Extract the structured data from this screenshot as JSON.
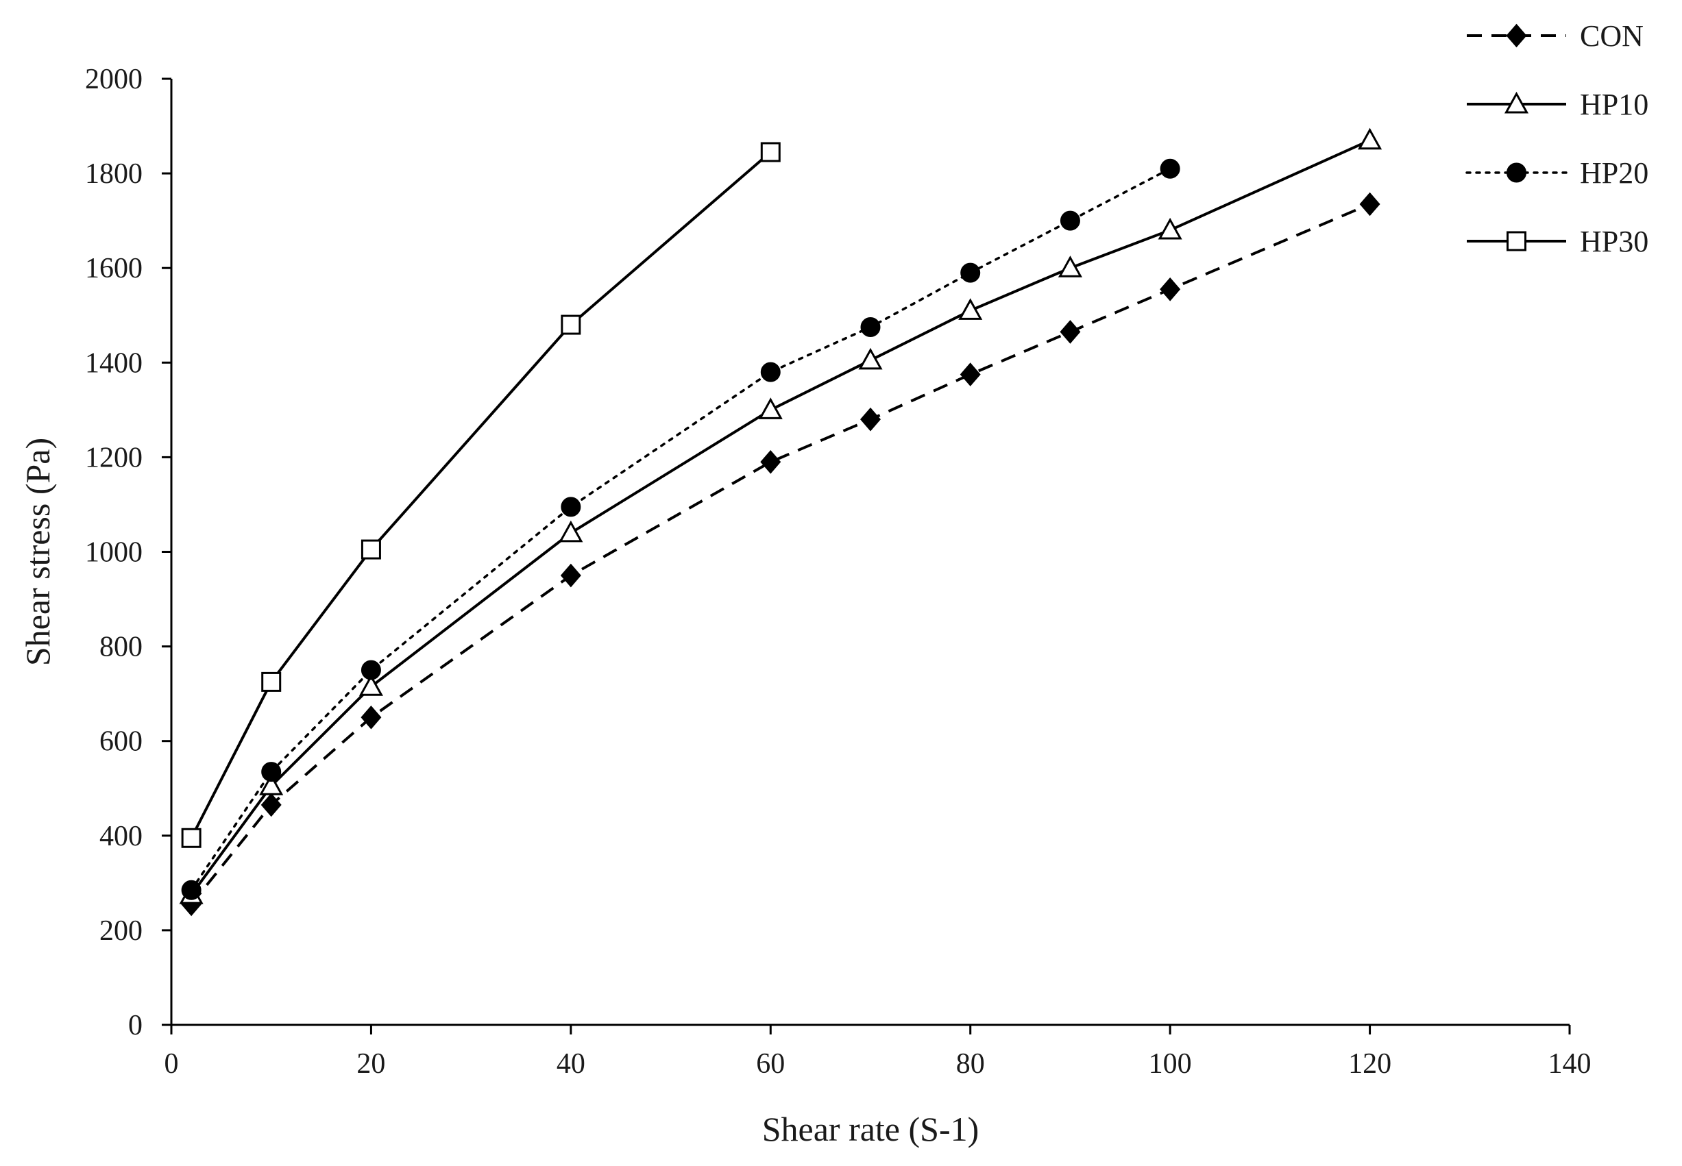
{
  "chart_data": {
    "type": "line",
    "title": "",
    "xlabel": "Shear rate (S-1)",
    "ylabel": "Shear stress (Pa)",
    "xlim": [
      0,
      140
    ],
    "ylim": [
      0,
      2000
    ],
    "xticks": [
      0,
      20,
      40,
      60,
      80,
      100,
      120,
      140
    ],
    "yticks": [
      0,
      200,
      400,
      600,
      800,
      1000,
      1200,
      1400,
      1600,
      1800,
      2000
    ],
    "grid": false,
    "legend_position": "top-right",
    "series": [
      {
        "name": "CON",
        "line_style": "dashed",
        "marker": "diamond",
        "marker_fill": "#000000",
        "color": "#000000",
        "x": [
          2,
          10,
          20,
          40,
          60,
          70,
          80,
          90,
          100,
          120
        ],
        "y": [
          255,
          465,
          650,
          950,
          1190,
          1280,
          1375,
          1465,
          1555,
          1735
        ]
      },
      {
        "name": "HP10",
        "line_style": "solid",
        "marker": "triangle",
        "marker_fill": "#ffffff",
        "color": "#000000",
        "x": [
          2,
          10,
          20,
          40,
          60,
          70,
          80,
          90,
          100,
          120
        ],
        "y": [
          275,
          505,
          715,
          1040,
          1300,
          1405,
          1510,
          1600,
          1680,
          1870
        ]
      },
      {
        "name": "HP20",
        "line_style": "dotted",
        "marker": "circle",
        "marker_fill": "#000000",
        "color": "#000000",
        "x": [
          2,
          10,
          20,
          40,
          60,
          70,
          80,
          90,
          100
        ],
        "y": [
          285,
          535,
          750,
          1095,
          1380,
          1475,
          1590,
          1700,
          1810
        ]
      },
      {
        "name": "HP30",
        "line_style": "solid",
        "marker": "square",
        "marker_fill": "#ffffff",
        "color": "#000000",
        "x": [
          2,
          10,
          20,
          40,
          60
        ],
        "y": [
          395,
          725,
          1005,
          1480,
          1845
        ]
      }
    ]
  }
}
